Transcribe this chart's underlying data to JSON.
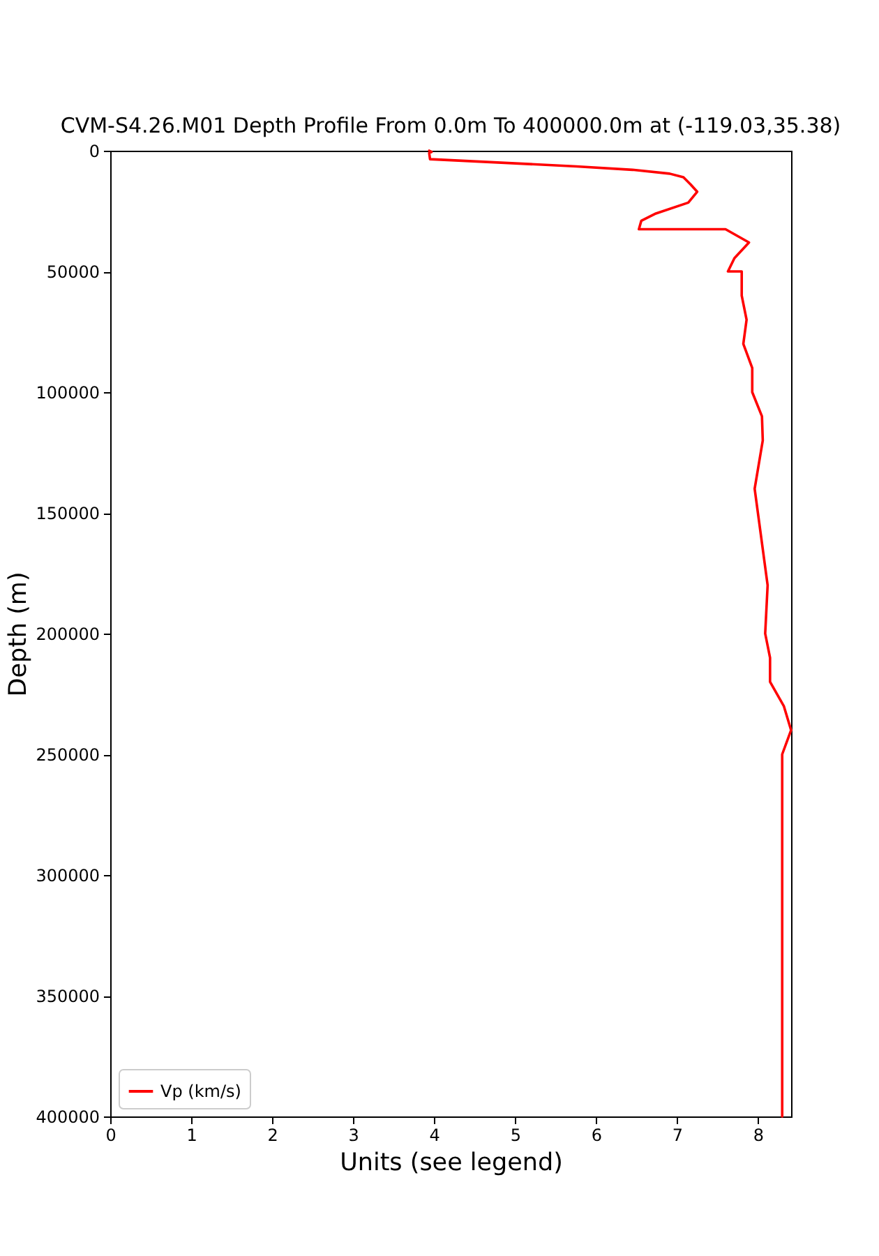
{
  "chart_data": {
    "type": "line",
    "title": "CVM-S4.26.M01 Depth Profile From 0.0m To 400000.0m at (-119.03,35.38)",
    "xlabel": "Units (see legend)",
    "ylabel": "Depth (m)",
    "xlim": [
      0,
      8.41
    ],
    "ylim": [
      400000,
      0
    ],
    "xticks": [
      0,
      1,
      2,
      3,
      4,
      5,
      6,
      7,
      8
    ],
    "yticks": [
      0,
      50000,
      100000,
      150000,
      200000,
      250000,
      300000,
      350000,
      400000
    ],
    "series": [
      {
        "name": "Vp (km/s)",
        "color": "#ff0000",
        "x": [
          3.94,
          3.97,
          3.94,
          3.95,
          4.61,
          5.76,
          6.45,
          6.91,
          7.08,
          7.17,
          7.25,
          7.14,
          6.74,
          6.56,
          6.53,
          7.6,
          7.89,
          7.71,
          7.63,
          7.8,
          7.8,
          7.86,
          7.82,
          7.93,
          7.93,
          8.05,
          8.06,
          7.96,
          8.12,
          8.09,
          8.15,
          8.15,
          8.32,
          8.41,
          8.3,
          8.3
        ],
        "values": [
          0,
          500,
          1000,
          3500,
          4600,
          6500,
          7900,
          9500,
          11000,
          14000,
          17000,
          21500,
          26000,
          29000,
          32500,
          32500,
          38000,
          44500,
          50000,
          50000,
          60000,
          70000,
          80000,
          90000,
          100000,
          110000,
          120000,
          140000,
          180000,
          200000,
          210000,
          220000,
          230000,
          240000,
          250000,
          400000
        ]
      }
    ],
    "legend": "bottom left",
    "marker": "none",
    "line_style": "solid"
  }
}
